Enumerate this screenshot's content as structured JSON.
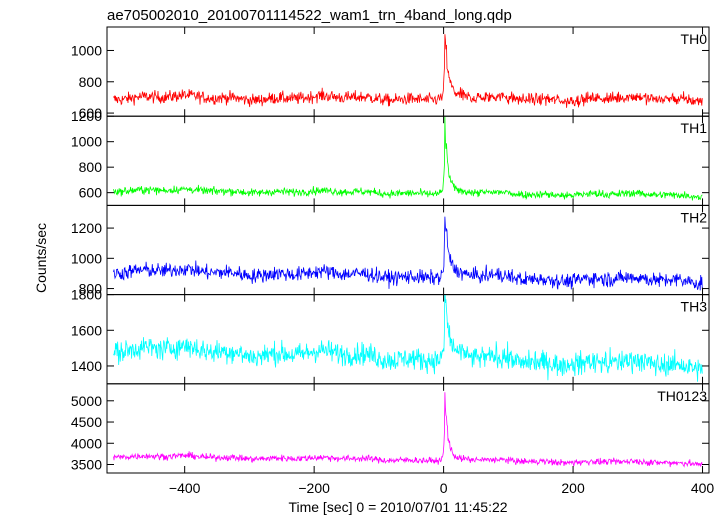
{
  "chart_data": {
    "type": "line",
    "title": "ae705002010_20100701114522_wam1_trn_4band_long.qdp",
    "xlabel": "Time [sec] 0 = 2010/07/01 11:45:22",
    "ylabel": "Counts/sec",
    "xlim": [
      -520,
      410
    ],
    "xticks": [
      -400,
      -200,
      0,
      200,
      400
    ],
    "grid": false,
    "legend": "none",
    "panels": [
      {
        "name": "TH0",
        "color": "#ff0000",
        "ylim": [
          580,
          1150
        ],
        "yticks": [
          600,
          800,
          1000
        ],
        "baseline_start": 700,
        "baseline_end": 690,
        "noise": 28,
        "peak": 1150
      },
      {
        "name": "TH1",
        "color": "#00ff00",
        "ylim": [
          500,
          1200
        ],
        "yticks": [
          600,
          800,
          1000,
          1200
        ],
        "baseline_start": 620,
        "baseline_end": 580,
        "noise": 22,
        "peak": 1180
      },
      {
        "name": "TH2",
        "color": "#0000ff",
        "ylim": [
          760,
          1350
        ],
        "yticks": [
          800,
          1000,
          1200
        ],
        "baseline_start": 920,
        "baseline_end": 850,
        "noise": 35,
        "peak": 1330
      },
      {
        "name": "TH3",
        "color": "#00ffff",
        "ylim": [
          1300,
          1800
        ],
        "yticks": [
          1400,
          1600,
          1800
        ],
        "baseline_start": 1500,
        "baseline_end": 1400,
        "noise": 45,
        "peak": 1790
      },
      {
        "name": "TH0123",
        "color": "#ff00ff",
        "ylim": [
          3300,
          5400
        ],
        "yticks": [
          3500,
          4000,
          4500,
          5000
        ],
        "baseline_start": 3700,
        "baseline_end": 3530,
        "noise": 55,
        "peak": 5300
      }
    ]
  }
}
